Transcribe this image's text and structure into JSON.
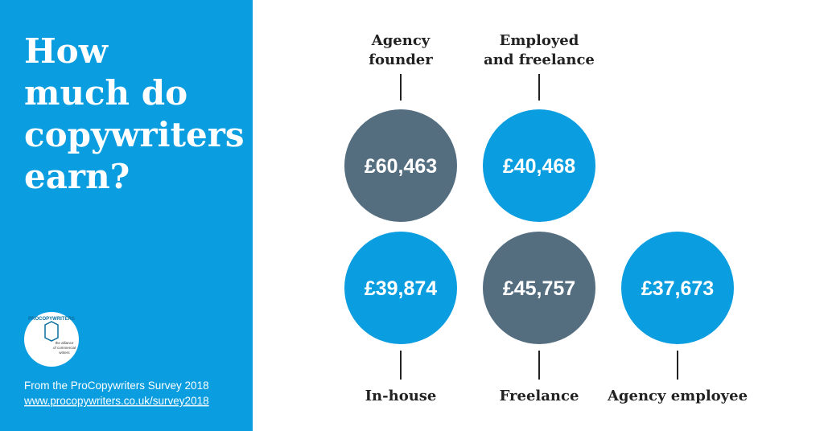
{
  "sidebar": {
    "title_lines": [
      "How",
      "much do",
      "copywriters",
      "earn?"
    ],
    "logo": {
      "name": "PROCOPYWRITERS",
      "tagline_lines": [
        "the alliance",
        "of commercial",
        "writers"
      ]
    },
    "source": "From the ProCopywriters Survey 2018",
    "link": "www.procopywriters.co.uk/survey2018"
  },
  "salaries": [
    {
      "label_lines": [
        "Agency",
        "founder"
      ],
      "value": "£60,463",
      "color": "#546e80",
      "row": 0,
      "col": 0,
      "label_position": "top"
    },
    {
      "label_lines": [
        "Employed",
        "and freelance"
      ],
      "value": "£40,468",
      "color": "#0a9de0",
      "row": 0,
      "col": 1,
      "label_position": "top"
    },
    {
      "label_lines": [
        "In-house"
      ],
      "value": "£39,874",
      "color": "#0a9de0",
      "row": 1,
      "col": 0,
      "label_position": "bottom"
    },
    {
      "label_lines": [
        "Freelance"
      ],
      "value": "£45,757",
      "color": "#546e80",
      "row": 1,
      "col": 1,
      "label_position": "bottom"
    },
    {
      "label_lines": [
        "Agency employee"
      ],
      "value": "£37,673",
      "color": "#0a9de0",
      "row": 1,
      "col": 2,
      "label_position": "bottom"
    }
  ]
}
